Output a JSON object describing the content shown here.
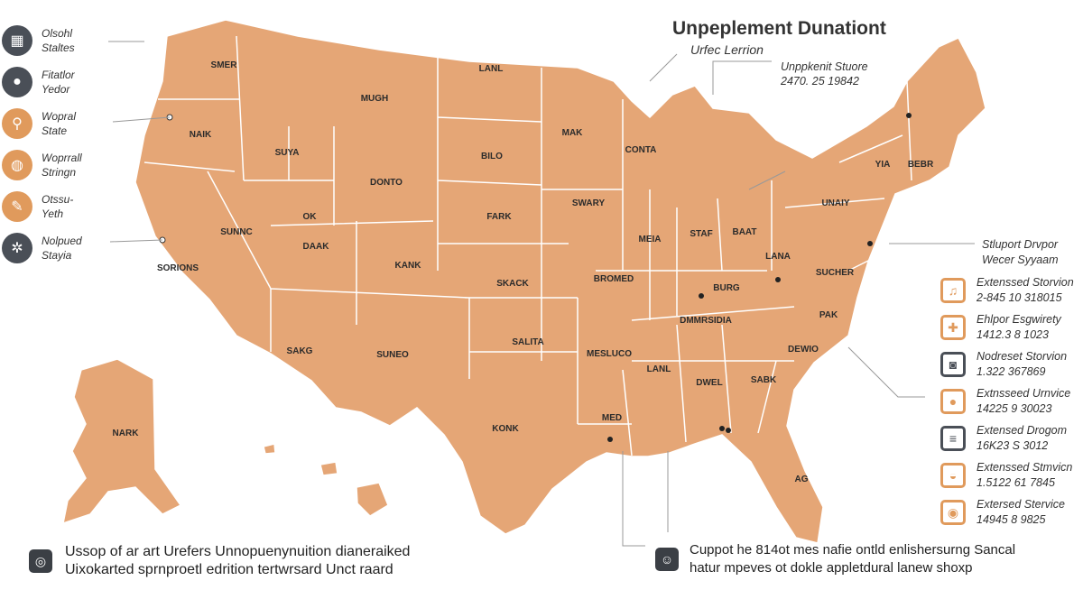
{
  "title": "Unpeplement Dunationt",
  "subtitle": "Urfec Lerrion",
  "callout_top": {
    "label": "Unppkenit Stuore",
    "value": "2470. 25 19842"
  },
  "left_legend": [
    {
      "icon": "keyboard-chat-icon",
      "line1": "Olsohl",
      "line2": "Staltes",
      "color": "#4a4f57"
    },
    {
      "icon": "person-icon",
      "line1": "Fitatlor",
      "line2": "Yedor",
      "color": "#4a4f57"
    },
    {
      "icon": "pin-icon",
      "line1": "Wopral",
      "line2": "State",
      "color": "#e09a5c"
    },
    {
      "icon": "drum-icon",
      "line1": "Woprrall",
      "line2": "Stringn",
      "color": "#e09a5c"
    },
    {
      "icon": "bandage-icon",
      "line1": "Otssu-",
      "line2": "Yeth",
      "color": "#e09a5c"
    },
    {
      "icon": "gear-globe-icon",
      "line1": "Nolpued",
      "line2": "Stayia",
      "color": "#4a4f57"
    }
  ],
  "right_header": {
    "line1": "Stluport Drvpor",
    "line2": "Wecer Syyaam"
  },
  "right_legend": [
    {
      "icon": "music-note-icon",
      "label": "Extenssed Storvion",
      "value": "2-845 10 318015",
      "dark": false
    },
    {
      "icon": "puzzle-icon",
      "label": "Ehlpor Esgwirety",
      "value": "1412.3 8 1023",
      "dark": false
    },
    {
      "icon": "camera-icon",
      "label": "Nodreset Storvion",
      "value": "1.322 367869",
      "dark": true
    },
    {
      "icon": "person-frame-icon",
      "label": "Extnsseed Urnvice",
      "value": "14225 9 30023",
      "dark": false
    },
    {
      "icon": "document-icon",
      "label": "Extensed Drogom",
      "value": "16K23 S 3012",
      "dark": true
    },
    {
      "icon": "bowl-icon",
      "label": "Extenssed Stmvicn",
      "value": "1.5122 61 7845",
      "dark": false
    },
    {
      "icon": "washer-icon",
      "label": "Extersed Stervice",
      "value": "14945 8 9825",
      "dark": false
    }
  ],
  "footer_left": {
    "line1": "Ussop of ar art Urefers Unnopuenynuition dianeraiked",
    "line2": "Uixokarted sprnproetl edrition tertwrsard Unct raard"
  },
  "footer_right": {
    "line1": "Cuppot he 814ot mes nafie ontld enlishersurng  Sancal",
    "line2": "hatur mpeves ot dokle appletdural lanew shoxp"
  },
  "map": {
    "fill": "#e5a676",
    "border": "#ffffff",
    "labels": [
      "SMER",
      "MUGH",
      "LANL",
      "MAK",
      "NAIK",
      "SUYA",
      "BILO",
      "CONTA",
      "YIA",
      "BEBR",
      "DONTO",
      "SWARY",
      "UNAIY",
      "OK",
      "FARK",
      "MEIA",
      "STAF",
      "BAAT",
      "SUNNC",
      "DAAK",
      "KANK",
      "SKACK",
      "BROMED",
      "BURG",
      "LANA",
      "SUCHER",
      "SORIONS",
      "DMMRSIDIA",
      "PAK",
      "SAKG",
      "SUNEO",
      "SALITA",
      "MESLUCO",
      "LANL",
      "DWEL",
      "SABK",
      "DEWIO",
      "NARK",
      "KONK",
      "MED",
      "AG"
    ]
  }
}
